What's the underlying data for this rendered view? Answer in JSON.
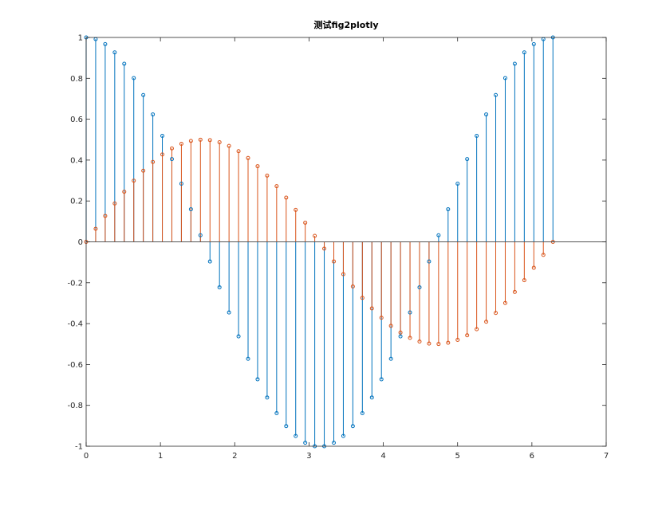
{
  "chart_data": {
    "type": "stem",
    "title": "测试fig2plotly",
    "xlabel": "",
    "ylabel": "",
    "xlim": [
      0,
      7
    ],
    "ylim": [
      -1,
      1
    ],
    "grid": false,
    "x_ticks": [
      0,
      1,
      2,
      3,
      4,
      5,
      6,
      7
    ],
    "x_tick_labels": [
      "0",
      "1",
      "2",
      "3",
      "4",
      "5",
      "6",
      "7"
    ],
    "y_ticks": [
      -1,
      -0.8,
      -0.6,
      -0.4,
      -0.2,
      0,
      0.2,
      0.4,
      0.6,
      0.8,
      1
    ],
    "y_tick_labels": [
      "-1",
      "-0.8",
      "-0.6",
      "-0.4",
      "-0.2",
      "0",
      "0.2",
      "0.4",
      "0.6",
      "0.8",
      "1"
    ],
    "x": [
      0,
      0.1282,
      0.2565,
      0.3847,
      0.5128,
      0.6411,
      0.7693,
      0.8976,
      1.0257,
      1.1539,
      1.2822,
      1.4104,
      1.5385,
      1.6668,
      1.795,
      1.9233,
      2.0514,
      2.1796,
      2.3079,
      2.4361,
      2.5642,
      2.6925,
      2.8207,
      2.949,
      3.0771,
      3.2053,
      3.3336,
      3.4618,
      3.5899,
      3.7182,
      3.8464,
      3.9747,
      4.1028,
      4.231,
      4.3593,
      4.4875,
      4.6156,
      4.7439,
      4.8721,
      5.0004,
      5.1285,
      5.2567,
      5.385,
      5.5132,
      5.6413,
      5.7696,
      5.8978,
      6.0261,
      6.1542,
      6.2832
    ],
    "series": [
      {
        "color": "#0072BD",
        "values": [
          1,
          0.9918,
          0.9673,
          0.9269,
          0.8713,
          0.8014,
          0.7183,
          0.6235,
          0.5184,
          0.4048,
          0.2845,
          0.1596,
          0.0321,
          -0.096,
          -0.2225,
          -0.3454,
          -0.4625,
          -0.5721,
          -0.6723,
          -0.7615,
          -0.8382,
          -0.9014,
          -0.9499,
          -0.983,
          -0.9999,
          -0.9999,
          -0.983,
          -0.9499,
          -0.9014,
          -0.8382,
          -0.7615,
          -0.6723,
          -0.5721,
          -0.4625,
          -0.3454,
          -0.2225,
          -0.096,
          0.0321,
          0.1596,
          0.2845,
          0.4048,
          0.5184,
          0.6235,
          0.7183,
          0.8014,
          0.8713,
          0.9269,
          0.9673,
          0.9918,
          1
        ]
      },
      {
        "color": "#D95319",
        "values": [
          0,
          0.064,
          0.1269,
          0.1876,
          0.2452,
          0.2991,
          0.3479,
          0.3909,
          0.4275,
          0.4572,
          0.4794,
          0.4936,
          0.4997,
          0.4977,
          0.4875,
          0.4693,
          0.4434,
          0.4101,
          0.3701,
          0.324,
          0.2725,
          0.2164,
          0.1566,
          0.0938,
          0.0292,
          -0.0332,
          -0.0958,
          -0.1584,
          -0.2182,
          -0.2741,
          -0.3254,
          -0.3713,
          -0.411,
          -0.444,
          -0.4698,
          -0.4877,
          -0.4977,
          -0.4997,
          -0.4936,
          -0.4794,
          -0.4572,
          -0.4275,
          -0.3909,
          -0.3479,
          -0.2991,
          -0.2452,
          -0.1876,
          -0.1269,
          -0.064,
          0
        ]
      }
    ]
  }
}
